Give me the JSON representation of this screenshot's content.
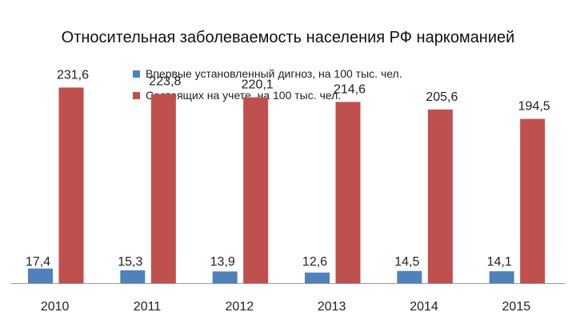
{
  "chart_data": {
    "type": "bar",
    "title": "Относительная заболеваемость населения РФ наркоманией",
    "xlabel": "",
    "ylabel": "",
    "categories": [
      "2010",
      "2011",
      "2012",
      "2013",
      "2014",
      "2015"
    ],
    "series": [
      {
        "name": "Впервые установленный дигноз, на 100 тыс. чел.",
        "color": "#4f81bd",
        "values": [
          17.4,
          15.3,
          13.9,
          12.6,
          14.5,
          14.1
        ],
        "labels": [
          "17,4",
          "15,3",
          "13,9",
          "12,6",
          "14,5",
          "14,1"
        ]
      },
      {
        "name": "Состоящих на учете, на 100 тыс. чел.",
        "color": "#c0504d",
        "values": [
          231.6,
          223.8,
          220.1,
          214.6,
          205.6,
          194.5
        ],
        "labels": [
          "231,6",
          "223,8",
          "220,1",
          "214,6",
          "205,6",
          "194,5"
        ]
      }
    ],
    "ylim": [
      0,
      250
    ],
    "grid": false,
    "legend": "top"
  }
}
